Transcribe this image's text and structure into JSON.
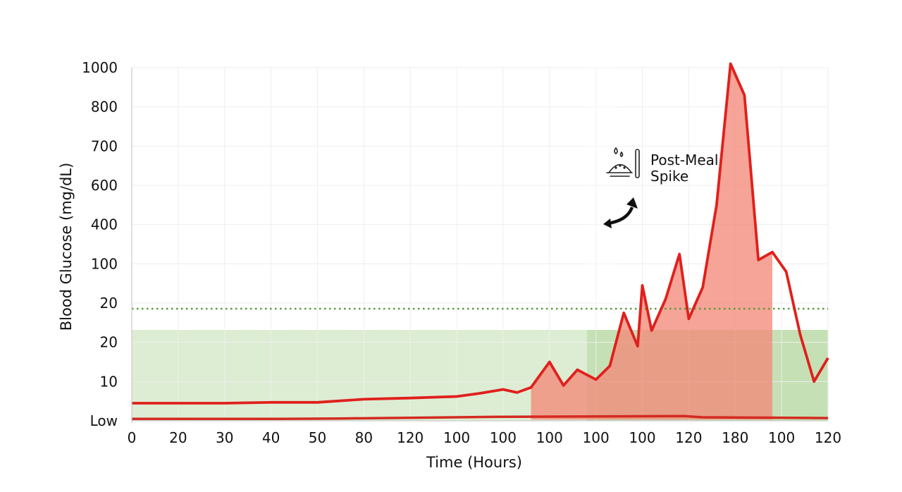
{
  "chart_data": {
    "type": "area",
    "title": "",
    "xlabel": "Time (Hours)",
    "ylabel": "Blood Glucose (mg/dL)",
    "x_tick_labels": [
      "0",
      "20",
      "30",
      "40",
      "50",
      "80",
      "120",
      "100",
      "100",
      "100",
      "100",
      "100",
      "120",
      "180",
      "100",
      "120"
    ],
    "y_tick_labels": [
      "Low",
      "10",
      "20",
      "20",
      "100",
      "400",
      "600",
      "700",
      "800",
      "1000"
    ],
    "series": [
      {
        "name": "Glucose",
        "color": "#e0201c",
        "x": [
          0,
          1,
          2,
          3,
          4,
          5,
          6,
          7,
          7.5,
          8,
          8.3,
          8.6,
          9,
          9.3,
          9.6,
          10,
          10.3,
          10.6,
          10.9,
          11,
          11.2,
          11.5,
          11.8,
          12,
          12.3,
          12.6,
          12.9,
          13.2,
          13.5,
          13.8,
          14.1,
          14.4,
          14.7,
          15
        ],
        "y": [
          0.45,
          0.45,
          0.45,
          0.47,
          0.47,
          0.55,
          0.58,
          0.62,
          0.7,
          0.8,
          0.72,
          0.85,
          1.5,
          0.9,
          1.3,
          1.05,
          1.4,
          2.75,
          1.9,
          3.45,
          2.3,
          3.1,
          4.25,
          2.6,
          3.4,
          5.5,
          9.1,
          8.3,
          4.1,
          4.3,
          3.8,
          2.2,
          1.0,
          1.6
        ]
      }
    ],
    "target_line_label": "20",
    "target_range": [
      "Low",
      "20"
    ],
    "annotation": {
      "text_line1": "Post-Meal",
      "text_line2": "Spike",
      "icon": "meal-icon"
    },
    "xlim": [
      0,
      15
    ],
    "ylim": [
      0,
      9
    ],
    "grid": true
  }
}
